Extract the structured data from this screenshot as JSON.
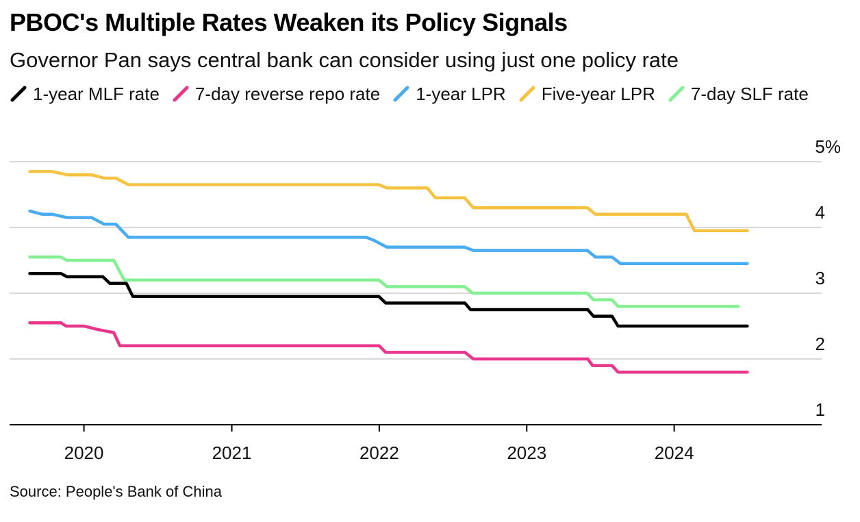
{
  "title": "PBOC's Multiple Rates Weaken its Policy Signals",
  "subtitle": "Governor Pan says central bank can consider using just one policy rate",
  "source": "Source: People's Bank of China",
  "chart_data": {
    "type": "line",
    "ylim": [
      1,
      5
    ],
    "y_ticks": [
      1,
      2,
      3,
      4,
      5
    ],
    "y_tick_labels": [
      "1",
      "2",
      "3",
      "4",
      "5%"
    ],
    "x_ticks": [
      2020,
      2021,
      2022,
      2023,
      2024
    ],
    "x_tick_labels": [
      "2020",
      "2021",
      "2022",
      "2023",
      "2024"
    ],
    "xlim": [
      "2019-07-01",
      "2024-12-31"
    ],
    "grid": true,
    "legend": "top",
    "series": [
      {
        "name": "1-year MLF rate",
        "color": "#000000",
        "points": [
          [
            "2019-08-20",
            3.3
          ],
          [
            "2019-11-05",
            3.3
          ],
          [
            "2019-11-20",
            3.25
          ],
          [
            "2020-02-17",
            3.25
          ],
          [
            "2020-03-05",
            3.15
          ],
          [
            "2020-04-15",
            3.15
          ],
          [
            "2020-05-01",
            2.95
          ],
          [
            "2021-12-31",
            2.95
          ],
          [
            "2022-01-17",
            2.85
          ],
          [
            "2022-08-01",
            2.85
          ],
          [
            "2022-08-15",
            2.75
          ],
          [
            "2023-06-01",
            2.75
          ],
          [
            "2023-06-15",
            2.65
          ],
          [
            "2023-07-31",
            2.65
          ],
          [
            "2023-08-15",
            2.5
          ],
          [
            "2024-06-30",
            2.5
          ]
        ]
      },
      {
        "name": "7-day reverse repo rate",
        "color": "#e8368c",
        "points": [
          [
            "2019-08-20",
            2.55
          ],
          [
            "2019-11-05",
            2.55
          ],
          [
            "2019-11-18",
            2.5
          ],
          [
            "2020-01-01",
            2.5
          ],
          [
            "2020-02-03",
            2.45
          ],
          [
            "2020-03-15",
            2.4
          ],
          [
            "2020-03-30",
            2.2
          ],
          [
            "2022-01-01",
            2.2
          ],
          [
            "2022-01-17",
            2.1
          ],
          [
            "2022-08-01",
            2.1
          ],
          [
            "2022-08-22",
            2.0
          ],
          [
            "2023-06-01",
            2.0
          ],
          [
            "2023-06-13",
            1.9
          ],
          [
            "2023-07-31",
            1.9
          ],
          [
            "2023-08-15",
            1.8
          ],
          [
            "2024-06-30",
            1.8
          ]
        ]
      },
      {
        "name": "1-year LPR",
        "color": "#4aacf0",
        "points": [
          [
            "2019-08-20",
            4.25
          ],
          [
            "2019-09-20",
            4.2
          ],
          [
            "2019-10-15",
            4.2
          ],
          [
            "2019-11-20",
            4.15
          ],
          [
            "2020-01-20",
            4.15
          ],
          [
            "2020-02-20",
            4.05
          ],
          [
            "2020-03-20",
            4.05
          ],
          [
            "2020-04-20",
            3.85
          ],
          [
            "2021-11-30",
            3.85
          ],
          [
            "2021-12-20",
            3.8
          ],
          [
            "2022-01-20",
            3.7
          ],
          [
            "2022-07-31",
            3.7
          ],
          [
            "2022-08-22",
            3.65
          ],
          [
            "2023-05-31",
            3.65
          ],
          [
            "2023-06-20",
            3.55
          ],
          [
            "2023-07-31",
            3.55
          ],
          [
            "2023-08-21",
            3.45
          ],
          [
            "2024-06-30",
            3.45
          ]
        ]
      },
      {
        "name": "Five-year LPR",
        "color": "#f5c342",
        "points": [
          [
            "2019-08-20",
            4.85
          ],
          [
            "2019-10-15",
            4.85
          ],
          [
            "2019-11-20",
            4.8
          ],
          [
            "2020-01-20",
            4.8
          ],
          [
            "2020-02-20",
            4.75
          ],
          [
            "2020-03-20",
            4.75
          ],
          [
            "2020-04-20",
            4.65
          ],
          [
            "2021-12-31",
            4.65
          ],
          [
            "2022-01-20",
            4.6
          ],
          [
            "2022-04-30",
            4.6
          ],
          [
            "2022-05-20",
            4.45
          ],
          [
            "2022-07-31",
            4.45
          ],
          [
            "2022-08-22",
            4.3
          ],
          [
            "2023-05-31",
            4.3
          ],
          [
            "2023-06-20",
            4.2
          ],
          [
            "2024-01-31",
            4.2
          ],
          [
            "2024-02-20",
            3.95
          ],
          [
            "2024-06-30",
            3.95
          ]
        ]
      },
      {
        "name": "7-day SLF rate",
        "color": "#85ef93",
        "points": [
          [
            "2019-08-20",
            3.55
          ],
          [
            "2019-11-05",
            3.55
          ],
          [
            "2019-11-20",
            3.5
          ],
          [
            "2020-03-15",
            3.5
          ],
          [
            "2020-04-10",
            3.2
          ],
          [
            "2021-12-31",
            3.2
          ],
          [
            "2022-01-20",
            3.1
          ],
          [
            "2022-07-31",
            3.1
          ],
          [
            "2022-08-20",
            3.0
          ],
          [
            "2023-05-31",
            3.0
          ],
          [
            "2023-06-15",
            2.9
          ],
          [
            "2023-07-31",
            2.9
          ],
          [
            "2023-08-15",
            2.8
          ],
          [
            "2024-06-08",
            2.8
          ]
        ]
      }
    ]
  }
}
